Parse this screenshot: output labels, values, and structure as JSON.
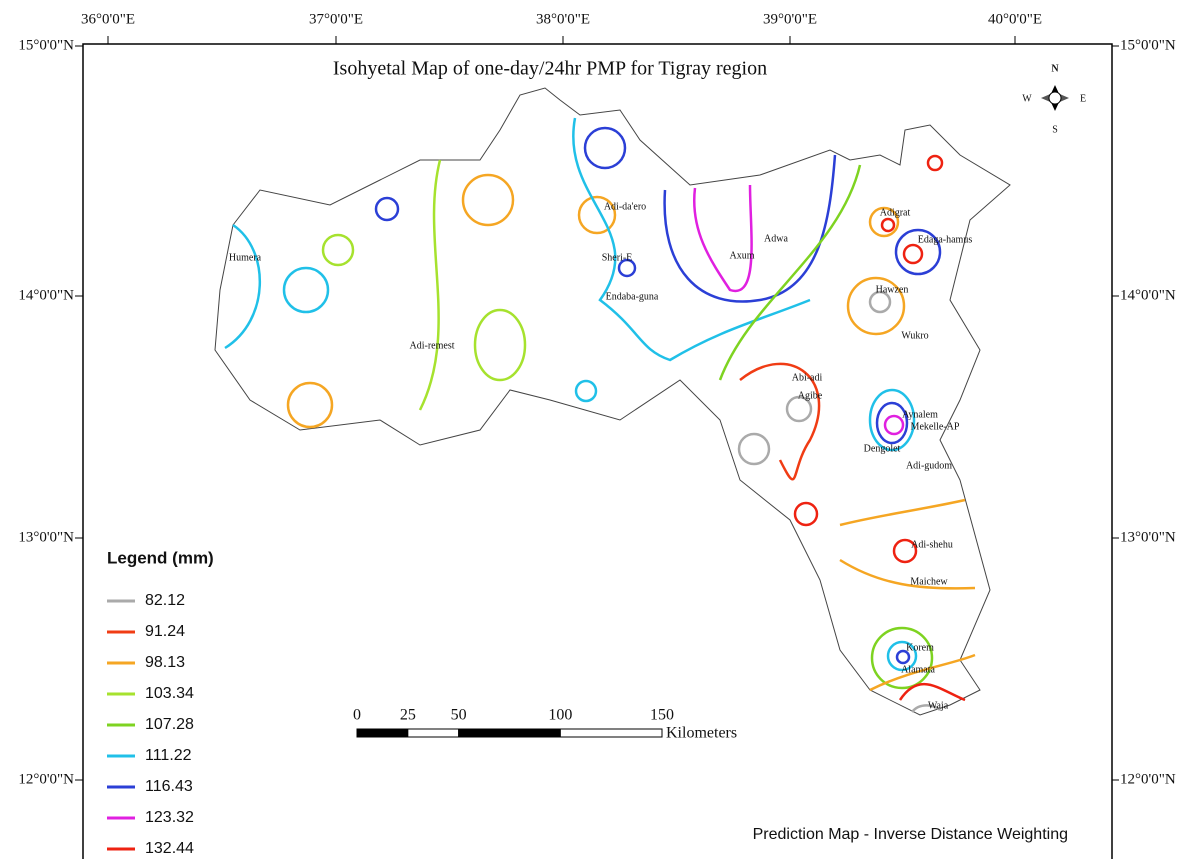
{
  "title": "Isohyetal Map of one-day/24hr  PMP for Tigray region",
  "longitude_labels": [
    "36°0'0\"E",
    "37°0'0\"E",
    "38°0'0\"E",
    "39°0'0\"E",
    "40°0'0\"E"
  ],
  "latitude_labels": [
    "15°0'0\"N",
    "14°0'0\"N",
    "13°0'0\"N",
    "12°0'0\"N"
  ],
  "north_arrow": {
    "n": "N",
    "e": "E",
    "s": "S",
    "w": "W"
  },
  "places": [
    "Humera",
    "Adi-remest",
    "Adi-da'ero",
    "Sheri-E",
    "Endaba-guna",
    "Adwa",
    "Axum",
    "Adigrat",
    "Edaga-hamus",
    "Hawzen",
    "Wukro",
    "Abi-adi",
    "Agibe",
    "Aynalem",
    "Mekelle-AP",
    "Dengolet",
    "Adi-gudom",
    "Adi-shehu",
    "Maichew",
    "Korem",
    "Alamata",
    "Waja"
  ],
  "legend": {
    "title": "Legend (mm)",
    "items": [
      {
        "label": "82.12",
        "color": "#aaaaaa"
      },
      {
        "label": "91.24",
        "color": "#f03c14"
      },
      {
        "label": "98.13",
        "color": "#f5a623"
      },
      {
        "label": "103.34",
        "color": "#a6e22e"
      },
      {
        "label": "107.28",
        "color": "#7ed321"
      },
      {
        "label": "111.22",
        "color": "#20c0e8"
      },
      {
        "label": "116.43",
        "color": "#2b3fd6"
      },
      {
        "label": "123.32",
        "color": "#e020e0"
      },
      {
        "label": "132.44",
        "color": "#ee2211"
      }
    ]
  },
  "scale_bar": {
    "ticks": [
      0,
      25,
      50,
      100,
      150
    ],
    "unit": "Kilometers"
  },
  "footer": "Prediction Map - Inverse Distance Weighting"
}
